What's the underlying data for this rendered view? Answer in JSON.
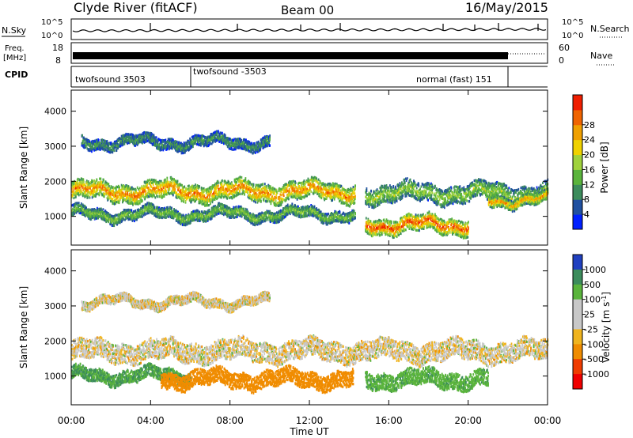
{
  "header": {
    "station": "Clyde River (fitACF)",
    "beam": "Beam 00",
    "date": "16/May/2015"
  },
  "summary_panels": {
    "nsky_label": "N.Sky",
    "nsearch_label": "N.Search",
    "nsky_ticks": [
      "10^5",
      "10^0"
    ],
    "nsearch_ticks": [
      "10^5",
      "10^0"
    ],
    "freq_label_line1": "Freq.",
    "freq_label_line2": "[MHz]",
    "freq_ticks": [
      "18",
      "8"
    ],
    "nave_label": "Nave",
    "nave_ticks": [
      "60",
      "0"
    ],
    "cpid_label": "CPID",
    "cpid_segments": [
      {
        "label": "twofsound 3503",
        "start_hour": 0,
        "end_hour": 6
      },
      {
        "label": "twofsound -3503",
        "start_hour": 6,
        "end_hour": 22
      },
      {
        "label": "normal (fast) 151",
        "start_hour": 22,
        "end_hour": 24
      }
    ]
  },
  "chart_data": [
    {
      "type": "heatmap",
      "name": "power",
      "ylabel": "Slant Range [km]",
      "x_range_hours": [
        0,
        24
      ],
      "ylim": [
        180,
        4600
      ],
      "yticks": [
        1000,
        2000,
        3000,
        4000
      ],
      "colorbar_label": "Power [dB]",
      "colorbar_ticks": [
        "4",
        "8",
        "12",
        "16",
        "20",
        "24",
        "28"
      ],
      "colorbar_colors": [
        "#0020ff",
        "#2050a0",
        "#3c8c5c",
        "#5ab43c",
        "#a0d23c",
        "#f0d200",
        "#f0a000",
        "#f06400",
        "#f01e00"
      ],
      "bands": [
        {
          "t_start": 0,
          "t_end": 14.3,
          "range_center": 1700,
          "range_width": 500,
          "level": 0.85
        },
        {
          "t_start": 0,
          "t_end": 14.3,
          "range_center": 1050,
          "range_width": 300,
          "level": 0.45
        },
        {
          "t_start": 0.5,
          "t_end": 10,
          "range_center": 3100,
          "range_width": 300,
          "level": 0.3
        },
        {
          "t_start": 14.8,
          "t_end": 20,
          "range_center": 750,
          "range_width": 450,
          "level": 0.95
        },
        {
          "t_start": 14.8,
          "t_end": 24,
          "range_center": 1650,
          "range_width": 500,
          "level": 0.5
        },
        {
          "t_start": 21,
          "t_end": 24,
          "range_center": 1450,
          "range_width": 300,
          "level": 0.8
        }
      ]
    },
    {
      "type": "heatmap",
      "name": "velocity",
      "ylabel": "Slant Range [km]",
      "xlabel": "Time UT",
      "x_range_hours": [
        0,
        24
      ],
      "xticks": [
        "00:00",
        "04:00",
        "08:00",
        "12:00",
        "16:00",
        "20:00",
        "00:00"
      ],
      "ylim": [
        180,
        4600
      ],
      "yticks": [
        1000,
        2000,
        3000,
        4000
      ],
      "colorbar_label": "Velocity [m s^-1]",
      "colorbar_ticks": [
        "1000",
        "500",
        "100",
        "25",
        "-25",
        "-100",
        "-500",
        "-1000"
      ],
      "colorbar_colors": [
        "#2040c0",
        "#3c8c5c",
        "#5ab43c",
        "#c8c8c8",
        "#c8c8c8",
        "#f0b41e",
        "#f08c00",
        "#f03c00",
        "#f00000"
      ],
      "bands": [
        {
          "t_start": 0,
          "t_end": 24,
          "range_center": 1700,
          "range_width": 550,
          "velocity": 0
        },
        {
          "t_start": 0,
          "t_end": 6,
          "range_center": 1000,
          "range_width": 350,
          "velocity": 300
        },
        {
          "t_start": 4.5,
          "t_end": 14.2,
          "range_center": 900,
          "range_width": 450,
          "velocity": -200
        },
        {
          "t_start": 14.8,
          "t_end": 21,
          "range_center": 900,
          "range_width": 450,
          "velocity": 250
        },
        {
          "t_start": 0.5,
          "t_end": 10,
          "range_center": 3100,
          "range_width": 250,
          "velocity": 0
        }
      ]
    }
  ]
}
